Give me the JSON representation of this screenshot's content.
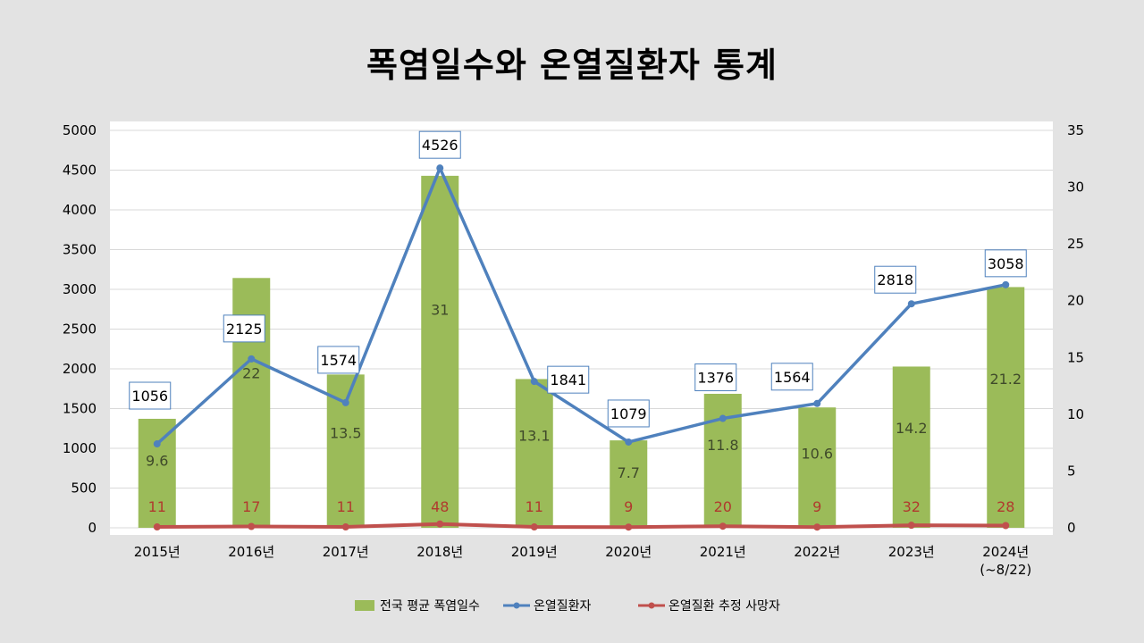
{
  "chart_data": {
    "type": "bar",
    "title": "폭염일수와 온열질환자 통계",
    "categories": [
      "2015년",
      "2016년",
      "2017년",
      "2018년",
      "2019년",
      "2020년",
      "2021년",
      "2022년",
      "2023년",
      "2024년\n(~8/22)"
    ],
    "series": [
      {
        "name": "전국 평균 폭염일수",
        "type": "bar",
        "axis": "right",
        "color": "#9bbb59",
        "values": [
          9.6,
          22,
          13.5,
          31,
          13.1,
          7.7,
          11.8,
          10.6,
          14.2,
          21.2
        ]
      },
      {
        "name": "온열질환자",
        "type": "line",
        "axis": "left",
        "color": "#4f81bd",
        "values": [
          1056,
          2125,
          1574,
          4526,
          1841,
          1079,
          1376,
          1564,
          2818,
          3058
        ]
      },
      {
        "name": "온열질환 추정 사망자",
        "type": "line",
        "axis": "left",
        "color": "#c0504d",
        "values": [
          11,
          17,
          11,
          48,
          11,
          9,
          20,
          9,
          32,
          28
        ]
      }
    ],
    "y_left": {
      "min": 0,
      "max": 5000,
      "ticks": [
        0,
        500,
        1000,
        1500,
        2000,
        2500,
        3000,
        3500,
        4000,
        4500,
        5000
      ]
    },
    "y_right": {
      "min": 0,
      "max": 35,
      "ticks": [
        0,
        5,
        10,
        15,
        20,
        25,
        30,
        35
      ]
    },
    "grid": true,
    "legend": "bottom"
  }
}
